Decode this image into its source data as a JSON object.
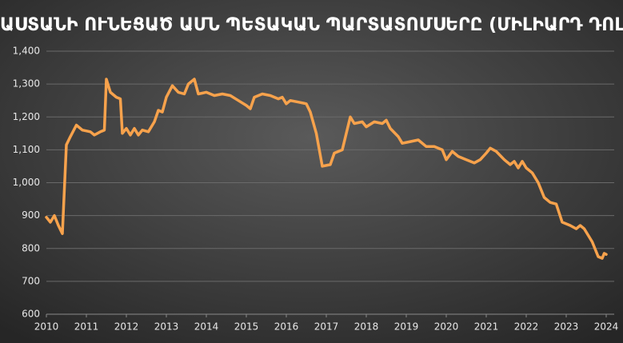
{
  "chart_data": {
    "type": "line",
    "title": "ՉԻՆԱՍՏԱՆԻ ՈՒՆԵՑԱԾ ԱՄՆ ՊԵՏԱԿԱՆ ՊԱՐՏԱՏՈՄՍԵՐԸ (ՄԻԼԻԱՐԴ ԴՈԼԱՐ)",
    "x": [
      2010.0,
      2010.1,
      2010.2,
      2010.3,
      2010.4,
      2010.5,
      2010.6,
      2010.75,
      2010.9,
      2011.1,
      2011.2,
      2011.35,
      2011.45,
      2011.5,
      2011.6,
      2011.75,
      2011.85,
      2011.9,
      2012.0,
      2012.1,
      2012.2,
      2012.3,
      2012.4,
      2012.55,
      2012.7,
      2012.8,
      2012.9,
      2013.0,
      2013.15,
      2013.3,
      2013.45,
      2013.55,
      2013.7,
      2013.8,
      2014.0,
      2014.2,
      2014.4,
      2014.6,
      2014.8,
      2015.0,
      2015.1,
      2015.2,
      2015.4,
      2015.6,
      2015.8,
      2015.9,
      2016.0,
      2016.1,
      2016.3,
      2016.5,
      2016.6,
      2016.75,
      2016.9,
      2017.1,
      2017.2,
      2017.4,
      2017.5,
      2017.6,
      2017.7,
      2017.9,
      2018.0,
      2018.2,
      2018.4,
      2018.5,
      2018.6,
      2018.8,
      2018.9,
      2019.1,
      2019.3,
      2019.5,
      2019.7,
      2019.9,
      2020.0,
      2020.15,
      2020.3,
      2020.5,
      2020.7,
      2020.85,
      2021.0,
      2021.1,
      2021.25,
      2021.45,
      2021.6,
      2021.7,
      2021.8,
      2021.9,
      2022.0,
      2022.15,
      2022.3,
      2022.45,
      2022.6,
      2022.75,
      2022.9,
      2023.1,
      2023.25,
      2023.35,
      2023.45,
      2023.65,
      2023.8,
      2023.9,
      2023.95,
      2024.0
    ],
    "series": [
      {
        "color": "#f7a24c",
        "values": [
          895,
          880,
          900,
          870,
          845,
          1115,
          1140,
          1175,
          1160,
          1155,
          1145,
          1155,
          1160,
          1315,
          1275,
          1260,
          1255,
          1150,
          1165,
          1145,
          1165,
          1145,
          1160,
          1155,
          1185,
          1220,
          1215,
          1260,
          1295,
          1275,
          1270,
          1300,
          1315,
          1270,
          1275,
          1265,
          1270,
          1265,
          1250,
          1235,
          1225,
          1260,
          1270,
          1265,
          1255,
          1260,
          1240,
          1250,
          1245,
          1240,
          1215,
          1150,
          1050,
          1055,
          1090,
          1100,
          1150,
          1200,
          1180,
          1185,
          1170,
          1185,
          1180,
          1190,
          1165,
          1140,
          1120,
          1125,
          1130,
          1110,
          1110,
          1100,
          1070,
          1095,
          1080,
          1070,
          1060,
          1070,
          1090,
          1105,
          1095,
          1070,
          1055,
          1065,
          1045,
          1065,
          1045,
          1030,
          1000,
          955,
          940,
          935,
          880,
          870,
          860,
          870,
          860,
          820,
          775,
          770,
          785,
          782
        ]
      }
    ],
    "xlim": [
      2010,
      2024
    ],
    "xticks": [
      2010,
      2011,
      2012,
      2013,
      2014,
      2015,
      2016,
      2017,
      2018,
      2019,
      2020,
      2021,
      2022,
      2023,
      2024
    ],
    "ylim": [
      600,
      1400
    ],
    "yticks": [
      600,
      700,
      800,
      900,
      {
        "value": 1000,
        "label": "1,000"
      },
      {
        "value": 1100,
        "label": "1,100"
      },
      {
        "value": 1200,
        "label": "1,200"
      },
      {
        "value": 1300,
        "label": "1,300"
      },
      {
        "value": 1400,
        "label": "1,400"
      }
    ],
    "grid": true
  }
}
